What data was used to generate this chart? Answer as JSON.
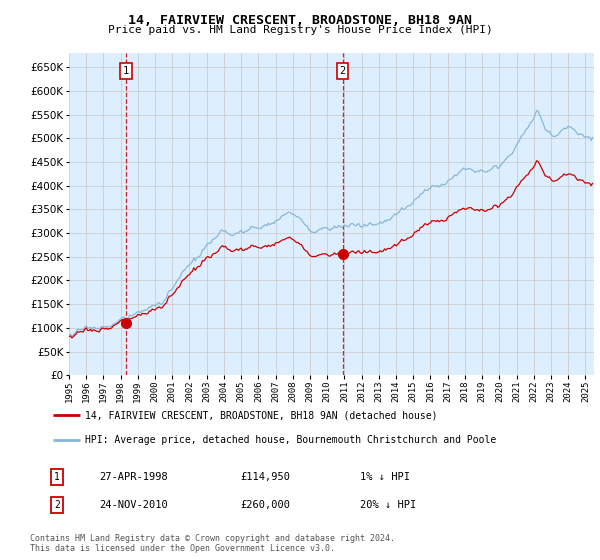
{
  "title": "14, FAIRVIEW CRESCENT, BROADSTONE, BH18 9AN",
  "subtitle": "Price paid vs. HM Land Registry's House Price Index (HPI)",
  "legend_line1": "14, FAIRVIEW CRESCENT, BROADSTONE, BH18 9AN (detached house)",
  "legend_line2": "HPI: Average price, detached house, Bournemouth Christchurch and Poole",
  "sale1_date": "27-APR-1998",
  "sale1_price": 114950,
  "sale1_label": "1% ↓ HPI",
  "sale2_date": "24-NOV-2010",
  "sale2_price": 260000,
  "sale2_label": "20% ↓ HPI",
  "footnote": "Contains HM Land Registry data © Crown copyright and database right 2024.\nThis data is licensed under the Open Government Licence v3.0.",
  "hpi_color": "#89b8d8",
  "price_color": "#cc0000",
  "bg_color": "#ddeeff",
  "plot_bg": "#ffffff",
  "grid_color": "#c8c8c8",
  "ylim": [
    0,
    680000
  ],
  "yticks": [
    0,
    50000,
    100000,
    150000,
    200000,
    250000,
    300000,
    350000,
    400000,
    450000,
    500000,
    550000,
    600000,
    650000
  ],
  "sale1_x": 1998.32,
  "sale2_x": 2010.9,
  "xmin": 1995.0,
  "xmax": 2025.5
}
